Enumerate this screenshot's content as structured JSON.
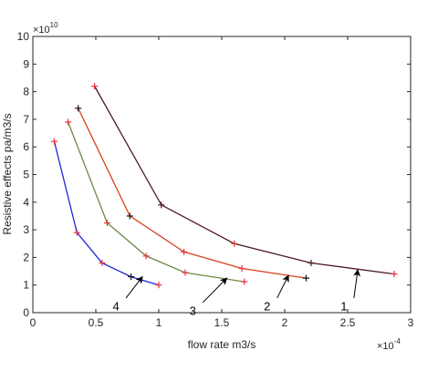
{
  "chart_data": {
    "type": "line",
    "xlabel": "flow rate m3/s",
    "ylabel": "Resistive effects pa/m3/s",
    "x_multiplier": {
      "base": "×10",
      "exponent": "-4"
    },
    "y_multiplier": {
      "base": "×10",
      "exponent": "10"
    },
    "xlim": [
      0,
      3
    ],
    "ylim": [
      0,
      10
    ],
    "xticks": [
      "0",
      "0.5",
      "1",
      "1.5",
      "2",
      "2.5",
      "3"
    ],
    "yticks": [
      "0",
      "1",
      "2",
      "3",
      "4",
      "5",
      "6",
      "7",
      "8",
      "9",
      "10"
    ],
    "grid": false,
    "series": [
      {
        "label": "1",
        "color": "#4b1a1e",
        "marker_colors": [
          "#e8323a",
          "#4b1a1e",
          "#e8323a",
          "#4b1a1e",
          "#e8323a"
        ],
        "x": [
          0.49,
          1.02,
          1.6,
          2.21,
          2.87
        ],
        "y": [
          8.2,
          3.9,
          2.5,
          1.8,
          1.4
        ],
        "arrow_tip": [
          2.58,
          1.55
        ],
        "label_pos": [
          2.47,
          0.08
        ]
      },
      {
        "label": "2",
        "color": "#d9431c",
        "marker_colors": [
          "#111111",
          "#111111",
          "#e8323a",
          "#e8323a",
          "#111111"
        ],
        "x": [
          0.36,
          0.77,
          1.2,
          1.66,
          2.17
        ],
        "y": [
          7.4,
          3.5,
          2.2,
          1.6,
          1.25
        ],
        "arrow_tip": [
          2.03,
          1.35
        ],
        "label_pos": [
          1.86,
          0.08
        ]
      },
      {
        "label": "3",
        "color": "#6a8b49",
        "marker_colors": [
          "#e8323a",
          "#e8323a",
          "#e8323a",
          "#e8323a",
          "#e8323a"
        ],
        "x": [
          0.28,
          0.59,
          0.9,
          1.21,
          1.68
        ],
        "y": [
          6.9,
          3.25,
          2.05,
          1.45,
          1.12
        ],
        "arrow_tip": [
          1.54,
          1.25
        ],
        "label_pos": [
          1.27,
          -0.08
        ]
      },
      {
        "label": "4",
        "color": "#1f22d6",
        "marker_colors": [
          "#e8323a",
          "#e8323a",
          "#e8323a",
          "#111111",
          "#e8323a"
        ],
        "x": [
          0.17,
          0.35,
          0.55,
          0.78,
          1.0
        ],
        "y": [
          6.2,
          2.9,
          1.8,
          1.3,
          1.0
        ],
        "arrow_tip": [
          0.87,
          1.3
        ],
        "label_pos": [
          0.66,
          0.08
        ]
      }
    ]
  }
}
